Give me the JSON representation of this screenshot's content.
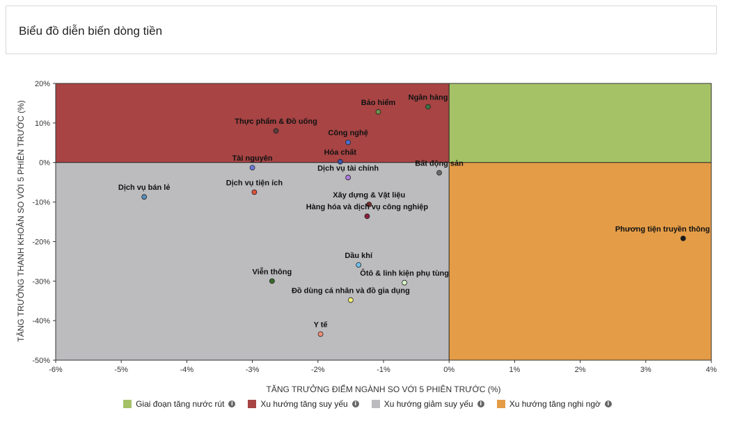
{
  "header": {
    "title": "Biểu đồ diễn biến dòng tiền"
  },
  "legend": [
    {
      "label": "Giai đoạn tăng nước rút",
      "color": "#a5c266",
      "icon": "info-icon"
    },
    {
      "label": "Xu hướng tăng suy yếu",
      "color": "#a84444",
      "icon": "info-icon"
    },
    {
      "label": "Xu hướng giảm suy yếu",
      "color": "#bcbcbf",
      "icon": "info-icon"
    },
    {
      "label": "Xu hướng tăng nghi ngờ",
      "color": "#e49c47",
      "icon": "info-icon"
    }
  ],
  "chart_data": {
    "type": "scatter",
    "xlabel": "TĂNG TRƯỞNG ĐIỂM NGÀNH SO VỚI 5 PHIÊN TRƯỚC (%)",
    "ylabel": "TĂNG TRƯỞNG THANH KHOẢN SO VỚI 5 PHIÊN TRƯỚC (%)",
    "xlim": [
      -6,
      4
    ],
    "ylim": [
      -50,
      20
    ],
    "x_ticks": [
      -6,
      -5,
      -4,
      -3,
      -2,
      -1,
      0,
      1,
      2,
      3,
      4
    ],
    "x_tick_labels": [
      "-6%",
      "-5%",
      "-4%",
      "-3%",
      "-2%",
      "-1%",
      "0%",
      "1%",
      "2%",
      "3%",
      "4%"
    ],
    "y_ticks": [
      20,
      10,
      0,
      -10,
      -20,
      -30,
      -40,
      -50
    ],
    "y_tick_labels": [
      "20%",
      "10%",
      "0%",
      "-10%",
      "-20%",
      "-30%",
      "-40%",
      "-50%"
    ],
    "quadrant_colors": {
      "top_right": "#a5c266",
      "top_left": "#a84444",
      "bottom_left": "#bcbcbf",
      "bottom_right": "#e49c47"
    },
    "points": [
      {
        "label": "Ngân hàng",
        "x": -0.32,
        "y": 14.1,
        "color": "#3f6f3f"
      },
      {
        "label": "Bảo hiểm",
        "x": -1.08,
        "y": 12.8,
        "color": "#6e8f4a"
      },
      {
        "label": "Thực phẩm & Đồ uống",
        "x": -2.64,
        "y": 8.0,
        "color": "#5a3a3a"
      },
      {
        "label": "Công nghệ",
        "x": -1.54,
        "y": 5.1,
        "color": "#4a6fd0"
      },
      {
        "label": "Hóa chất",
        "x": -1.66,
        "y": 0.2,
        "color": "#3b56a8"
      },
      {
        "label": "Tài nguyên",
        "x": -3.0,
        "y": -1.3,
        "color": "#6a79d8"
      },
      {
        "label": "Dịch vụ tài chính",
        "x": -1.54,
        "y": -3.8,
        "color": "#b07be0"
      },
      {
        "label": "Bất động sản",
        "x": -0.15,
        "y": -2.6,
        "color": "#6a6a6a"
      },
      {
        "label": "Dịch vụ tiện ích",
        "x": -2.97,
        "y": -7.5,
        "color": "#e0533a"
      },
      {
        "label": "Dịch vụ bán lẻ",
        "x": -4.65,
        "y": -8.7,
        "color": "#5a8fb8"
      },
      {
        "label": "Xây dựng & Vật liệu",
        "x": -1.22,
        "y": -10.6,
        "color": "#7a2d2d"
      },
      {
        "label": "Hàng hóa và dịch vụ công nghiệp",
        "x": -1.25,
        "y": -13.6,
        "color": "#8c1f3a"
      },
      {
        "label": "Phương tiện truyền thông",
        "x": 3.57,
        "y": -19.2,
        "color": "#1a1a1a"
      },
      {
        "label": "Dầu khí",
        "x": -1.38,
        "y": -25.9,
        "color": "#6fc0ea"
      },
      {
        "label": "Viễn thông",
        "x": -2.7,
        "y": -30.0,
        "color": "#3a6b2a"
      },
      {
        "label": "Ôtô & linh kiện phụ tùng",
        "x": -0.68,
        "y": -30.4,
        "color": "#d9f2c9"
      },
      {
        "label": "Đồ dùng cá nhân và đồ gia dụng",
        "x": -1.5,
        "y": -34.8,
        "color": "#f4f070"
      },
      {
        "label": "Y tế",
        "x": -1.96,
        "y": -43.4,
        "color": "#f39079"
      }
    ]
  }
}
